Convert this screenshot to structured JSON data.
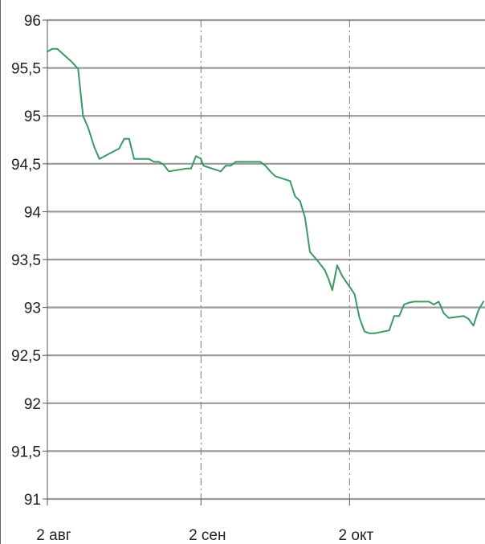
{
  "chart_data": {
    "type": "line",
    "title": "",
    "xlabel": "",
    "ylabel": "",
    "x_tick_labels": [
      "2 авг",
      "2 сен",
      "2 окт"
    ],
    "y_tick_labels": [
      "96",
      "95,5",
      "95",
      "94,5",
      "94",
      "93,5",
      "93",
      "92,5",
      "92",
      "91,5",
      "91"
    ],
    "ylim": [
      91,
      96
    ],
    "grid": "horizontal",
    "x_day_ticks": [
      0,
      31,
      61
    ],
    "xlim_days": [
      0,
      88
    ],
    "colors": {
      "line": "#3a9a62",
      "grid": "#999999",
      "vgrid": "#7a7a7a"
    },
    "series": [
      {
        "points": [
          [
            0.0,
            95.67
          ],
          [
            1.0,
            95.7
          ],
          [
            2.0,
            95.7
          ],
          [
            3.5,
            95.63
          ],
          [
            5.0,
            95.56
          ],
          [
            6.2,
            95.49
          ],
          [
            7.2,
            95.0
          ],
          [
            8.2,
            94.88
          ],
          [
            9.5,
            94.67
          ],
          [
            10.5,
            94.55
          ],
          [
            14.5,
            94.66
          ],
          [
            15.5,
            94.76
          ],
          [
            16.5,
            94.76
          ],
          [
            17.5,
            94.55
          ],
          [
            20.5,
            94.55
          ],
          [
            21.5,
            94.52
          ],
          [
            22.5,
            94.52
          ],
          [
            23.5,
            94.49
          ],
          [
            24.5,
            94.42
          ],
          [
            28.0,
            94.45
          ],
          [
            29.0,
            94.45
          ],
          [
            30.0,
            94.58
          ],
          [
            31.0,
            94.55
          ],
          [
            31.5,
            94.48
          ],
          [
            35.0,
            94.42
          ],
          [
            36.0,
            94.48
          ],
          [
            37.0,
            94.48
          ],
          [
            38.0,
            94.52
          ],
          [
            43.0,
            94.52
          ],
          [
            44.0,
            94.48
          ],
          [
            45.0,
            94.42
          ],
          [
            46.0,
            94.37
          ],
          [
            49.0,
            94.32
          ],
          [
            50.0,
            94.16
          ],
          [
            51.0,
            94.11
          ],
          [
            52.0,
            93.94
          ],
          [
            53.0,
            93.58
          ],
          [
            54.5,
            93.49
          ],
          [
            56.0,
            93.39
          ],
          [
            56.8,
            93.29
          ],
          [
            57.5,
            93.18
          ],
          [
            58.5,
            93.44
          ],
          [
            59.5,
            93.33
          ],
          [
            62.0,
            93.14
          ],
          [
            63.0,
            92.89
          ],
          [
            64.0,
            92.75
          ],
          [
            65.0,
            92.73
          ],
          [
            66.0,
            92.73
          ],
          [
            69.0,
            92.76
          ],
          [
            70.0,
            92.91
          ],
          [
            71.0,
            92.91
          ],
          [
            72.0,
            93.03
          ],
          [
            73.0,
            93.05
          ],
          [
            74.0,
            93.06
          ],
          [
            77.0,
            93.06
          ],
          [
            78.0,
            93.03
          ],
          [
            79.0,
            93.06
          ],
          [
            80.0,
            92.94
          ],
          [
            81.0,
            92.89
          ],
          [
            84.0,
            92.91
          ],
          [
            85.0,
            92.88
          ],
          [
            86.0,
            92.81
          ],
          [
            87.0,
            92.97
          ],
          [
            88.0,
            93.06
          ]
        ]
      }
    ]
  }
}
